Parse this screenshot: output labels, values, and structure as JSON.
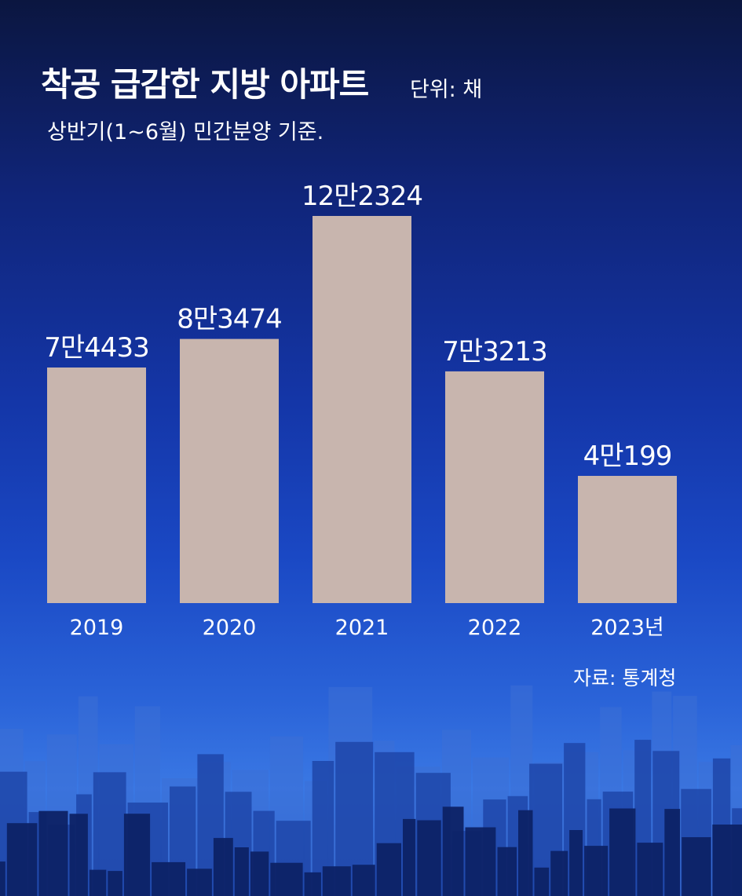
{
  "title": "착공 급감한 지방 아파트",
  "unit_label": "단위: 채",
  "subtitle": "상반기(1~6월) 민간분양 기준.",
  "source": "자료: 통계청",
  "colors": {
    "bar": "#c8b5ae",
    "text": "#ffffff",
    "background_top": "#0b1640",
    "background_bottom": "#3a78e4"
  },
  "chart_data": {
    "type": "bar",
    "title": "착공 급감한 지방 아파트",
    "subtitle": "상반기(1~6월) 민간분양 기준.",
    "unit": "채",
    "categories": [
      "2019",
      "2020",
      "2021",
      "2022",
      "2023년"
    ],
    "values": [
      74433,
      83474,
      122324,
      73213,
      40199
    ],
    "data_labels": [
      "7만4433",
      "8만3474",
      "12만2324",
      "7만3213",
      "4만199"
    ],
    "xlabel": "",
    "ylabel": "",
    "ylim": [
      0,
      150000
    ],
    "grid": false,
    "legend": "none"
  }
}
